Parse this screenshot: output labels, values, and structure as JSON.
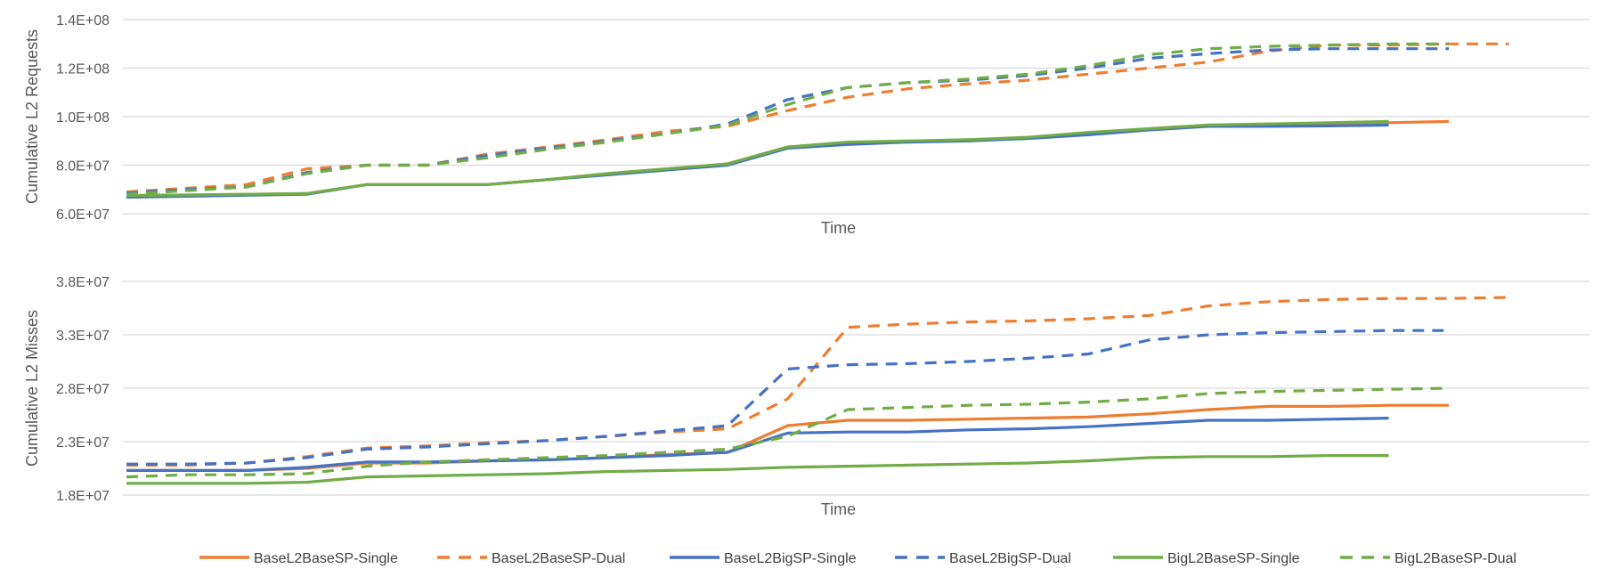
{
  "chart_data": [
    {
      "type": "line",
      "title": "",
      "xlabel": "Time",
      "ylabel": "Cumulative L2 Requests",
      "ylim": [
        60000000,
        140000000
      ],
      "yticks": [
        60000000,
        80000000,
        100000000,
        120000000,
        140000000
      ],
      "ytick_labels": [
        "6.0E+07",
        "8.0E+07",
        "1.0E+08",
        "1.2E+08",
        "1.4E+08"
      ],
      "grid": true,
      "series": [
        {
          "name": "BaseL2BaseSP-Single",
          "x": [
            0,
            5,
            10,
            15,
            20,
            25,
            30,
            35,
            40,
            45,
            50,
            55,
            60,
            65,
            70,
            75,
            80,
            85,
            90,
            95,
            100,
            105,
            110
          ],
          "values": [
            67500000,
            67700000,
            68000000,
            68300000,
            72000000,
            72000000,
            72000000,
            74000000,
            76500000,
            78500000,
            80500000,
            87500000,
            89000000,
            90000000,
            90000000,
            91500000,
            93000000,
            95000000,
            96500000,
            97000000,
            97000000,
            97500000,
            98000000
          ]
        },
        {
          "name": "BaseL2BaseSP-Dual",
          "x": [
            0,
            5,
            10,
            15,
            20,
            25,
            30,
            35,
            40,
            45,
            50,
            55,
            60,
            65,
            70,
            75,
            80,
            85,
            90,
            95,
            100,
            105,
            110,
            115
          ],
          "values": [
            69000000,
            70500000,
            72000000,
            78500000,
            80000000,
            80000000,
            84500000,
            87500000,
            90500000,
            94000000,
            96000000,
            102500000,
            108000000,
            111500000,
            113500000,
            115000000,
            117500000,
            120000000,
            122500000,
            127000000,
            129500000,
            129500000,
            130000000,
            130000000
          ]
        },
        {
          "name": "BaseL2BigSP-Single",
          "x": [
            0,
            5,
            10,
            15,
            20,
            25,
            30,
            35,
            40,
            45,
            50,
            55,
            60,
            65,
            70,
            75,
            80,
            85,
            90,
            95,
            100,
            105
          ],
          "values": [
            66800000,
            67200000,
            67600000,
            68000000,
            72000000,
            72000000,
            72000000,
            74000000,
            76000000,
            78000000,
            80000000,
            87000000,
            88500000,
            89500000,
            90000000,
            91000000,
            92500000,
            94500000,
            96000000,
            96000000,
            96200000,
            96500000
          ]
        },
        {
          "name": "BaseL2BigSP-Dual",
          "x": [
            0,
            5,
            10,
            15,
            20,
            25,
            30,
            35,
            40,
            45,
            50,
            55,
            60,
            65,
            70,
            75,
            80,
            85,
            90,
            95,
            100,
            105,
            110
          ],
          "values": [
            68500000,
            70000000,
            71000000,
            77000000,
            80000000,
            80000000,
            84000000,
            87000000,
            90000000,
            93000000,
            97000000,
            107000000,
            112000000,
            114000000,
            115000000,
            117000000,
            120000000,
            124000000,
            126000000,
            127500000,
            128000000,
            128000000,
            128000000
          ]
        },
        {
          "name": "BigL2BaseSP-Single",
          "x": [
            0,
            5,
            10,
            15,
            20,
            25,
            30,
            35,
            40,
            45,
            50,
            55,
            60,
            65,
            70,
            75,
            80,
            85,
            90,
            95,
            100,
            105
          ],
          "values": [
            67500000,
            67700000,
            68000000,
            68300000,
            72000000,
            72000000,
            72000000,
            74000000,
            76500000,
            78500000,
            80500000,
            87500000,
            89500000,
            90000000,
            90500000,
            91500000,
            93500000,
            95000000,
            96500000,
            97000000,
            97500000,
            98000000
          ]
        },
        {
          "name": "BigL2BaseSP-Dual",
          "x": [
            0,
            5,
            10,
            15,
            20,
            25,
            30,
            35,
            40,
            45,
            50,
            55,
            60,
            65,
            70,
            75,
            80,
            85,
            90,
            95,
            100,
            105,
            110
          ],
          "values": [
            68000000,
            69500000,
            71000000,
            76500000,
            80000000,
            80000000,
            83000000,
            86500000,
            89500000,
            93000000,
            96500000,
            105000000,
            112000000,
            114000000,
            115500000,
            117500000,
            121000000,
            125500000,
            128000000,
            129000000,
            129500000,
            130000000,
            130000000
          ]
        }
      ]
    },
    {
      "type": "line",
      "title": "",
      "xlabel": "Time",
      "ylabel": "Cumulative L2 Misses",
      "ylim": [
        18000000,
        38000000
      ],
      "yticks": [
        18000000,
        23000000,
        28000000,
        33000000,
        38000000
      ],
      "ytick_labels": [
        "1.8E+07",
        "2.3E+07",
        "2.8E+07",
        "3.3E+07",
        "3.8E+07"
      ],
      "grid": true,
      "series": [
        {
          "name": "BaseL2BaseSP-Single",
          "x": [
            0,
            5,
            10,
            15,
            20,
            25,
            30,
            35,
            40,
            45,
            50,
            55,
            60,
            65,
            70,
            75,
            80,
            85,
            90,
            95,
            100,
            105,
            110
          ],
          "values": [
            20300000,
            20300000,
            20300000,
            20500000,
            21000000,
            21000000,
            21200000,
            21300000,
            21500000,
            21800000,
            22000000,
            24500000,
            25000000,
            25000000,
            25100000,
            25200000,
            25300000,
            25600000,
            26000000,
            26300000,
            26300000,
            26400000,
            26400000
          ]
        },
        {
          "name": "BaseL2BaseSP-Dual",
          "x": [
            0,
            5,
            10,
            15,
            20,
            25,
            30,
            35,
            40,
            45,
            50,
            55,
            60,
            65,
            70,
            75,
            80,
            85,
            90,
            95,
            100,
            105,
            110,
            115
          ],
          "values": [
            20800000,
            20800000,
            21000000,
            21600000,
            22400000,
            22600000,
            22900000,
            23100000,
            23500000,
            23900000,
            24200000,
            27000000,
            33700000,
            34000000,
            34200000,
            34300000,
            34500000,
            34800000,
            35700000,
            36100000,
            36300000,
            36400000,
            36400000,
            36500000
          ]
        },
        {
          "name": "BaseL2BigSP-Single",
          "x": [
            0,
            5,
            10,
            15,
            20,
            25,
            30,
            35,
            40,
            45,
            50,
            55,
            60,
            65,
            70,
            75,
            80,
            85,
            90,
            95,
            100,
            105
          ],
          "values": [
            20300000,
            20300000,
            20300000,
            20600000,
            21100000,
            21100000,
            21200000,
            21300000,
            21500000,
            21700000,
            22000000,
            23800000,
            23900000,
            23900000,
            24100000,
            24200000,
            24400000,
            24700000,
            25000000,
            25000000,
            25100000,
            25200000
          ]
        },
        {
          "name": "BaseL2BigSP-Dual",
          "x": [
            0,
            5,
            10,
            15,
            20,
            25,
            30,
            35,
            40,
            45,
            50,
            55,
            60,
            65,
            70,
            75,
            80,
            85,
            90,
            95,
            100,
            105,
            110
          ],
          "values": [
            20900000,
            20900000,
            21000000,
            21500000,
            22300000,
            22500000,
            22800000,
            23100000,
            23500000,
            24000000,
            24500000,
            29800000,
            30200000,
            30300000,
            30500000,
            30800000,
            31200000,
            32500000,
            33000000,
            33200000,
            33300000,
            33400000,
            33400000
          ]
        },
        {
          "name": "BigL2BaseSP-Single",
          "x": [
            0,
            5,
            10,
            15,
            20,
            25,
            30,
            35,
            40,
            45,
            50,
            55,
            60,
            65,
            70,
            75,
            80,
            85,
            90,
            95,
            100,
            105
          ],
          "values": [
            19100000,
            19100000,
            19100000,
            19200000,
            19700000,
            19800000,
            19900000,
            20000000,
            20200000,
            20300000,
            20400000,
            20600000,
            20700000,
            20800000,
            20900000,
            21000000,
            21200000,
            21500000,
            21600000,
            21600000,
            21700000,
            21700000
          ]
        },
        {
          "name": "BigL2BaseSP-Dual",
          "x": [
            0,
            5,
            10,
            15,
            20,
            25,
            30,
            35,
            40,
            45,
            50,
            55,
            60,
            65,
            70,
            75,
            80,
            85,
            90,
            95,
            100,
            105,
            110
          ],
          "values": [
            19700000,
            19900000,
            19900000,
            20000000,
            20700000,
            21100000,
            21300000,
            21500000,
            21700000,
            22000000,
            22300000,
            23500000,
            26000000,
            26200000,
            26400000,
            26500000,
            26700000,
            27000000,
            27500000,
            27700000,
            27800000,
            27900000,
            28000000
          ]
        }
      ]
    }
  ],
  "legend": [
    {
      "name": "BaseL2BaseSP-Single",
      "color": "#ED7D31",
      "dash": false
    },
    {
      "name": "BaseL2BaseSP-Dual",
      "color": "#ED7D31",
      "dash": true
    },
    {
      "name": "BaseL2BigSP-Single",
      "color": "#4472C4",
      "dash": false
    },
    {
      "name": "BaseL2BigSP-Dual",
      "color": "#4472C4",
      "dash": true
    },
    {
      "name": "BigL2BaseSP-Single",
      "color": "#70AD47",
      "dash": false
    },
    {
      "name": "BigL2BaseSP-Dual",
      "color": "#70AD47",
      "dash": true
    }
  ]
}
